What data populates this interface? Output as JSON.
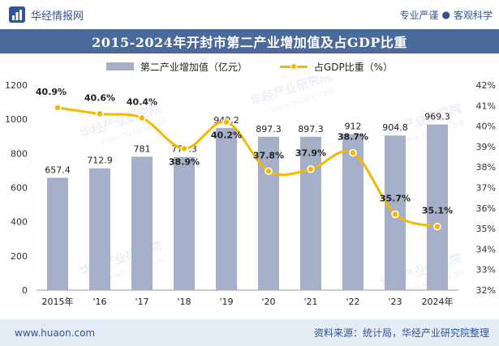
{
  "header": {
    "brand": "华经情报网",
    "tagline_left": "专业严谨",
    "tagline_sep": "●",
    "tagline_right": "客观科学"
  },
  "watermarks": [
    "华经产业研究院",
    "www.huaon.com"
  ],
  "footer": {
    "url": "www.huaon.com",
    "source": "资料来源：统计局，华经产业研究院整理"
  },
  "colors": {
    "bar": "#a5b0c8",
    "line": "#f5b800",
    "title_bg": "#4a6a9c",
    "footer_bg": "#e6ecf5"
  },
  "chart_data": {
    "type": "bar",
    "title": "2015-2024年开封市第二产业增加值及占GDP比重",
    "categories": [
      "2015年",
      "'16",
      "'17",
      "'18",
      "'19",
      "'20",
      "'21",
      "'22",
      "'23",
      "2024年"
    ],
    "series": [
      {
        "name": "第二产业增加值（亿元）",
        "type": "bar",
        "axis": "left",
        "values": [
          657.4,
          712.9,
          781,
          779.3,
          949.2,
          897.3,
          897.3,
          912,
          904.8,
          969.3
        ],
        "labels": [
          "657.4",
          "712.9",
          "781",
          "779.3",
          "949.2",
          "897.3",
          "897.3",
          "912",
          "904.8",
          "969.3"
        ]
      },
      {
        "name": "占GDP比重（%）",
        "type": "line",
        "axis": "right",
        "values": [
          40.9,
          40.6,
          40.4,
          38.9,
          40.2,
          37.8,
          37.9,
          38.7,
          35.7,
          35.1
        ],
        "labels": [
          "40.9%",
          "40.6%",
          "40.4%",
          "38.9%",
          "40.2%",
          "37.8%",
          "37.9%",
          "38.7%",
          "35.7%",
          "35.1%"
        ]
      }
    ],
    "y_left": {
      "min": 0,
      "max": 1200,
      "ticks": [
        "0",
        "200",
        "400",
        "600",
        "800",
        "1000",
        "1200"
      ]
    },
    "y_right": {
      "min": 32,
      "max": 42,
      "ticks": [
        "32%",
        "33%",
        "34%",
        "35%",
        "36%",
        "37%",
        "38%",
        "39%",
        "40%",
        "41%",
        "42%"
      ]
    },
    "grid": false,
    "legend_position": "top-center"
  }
}
